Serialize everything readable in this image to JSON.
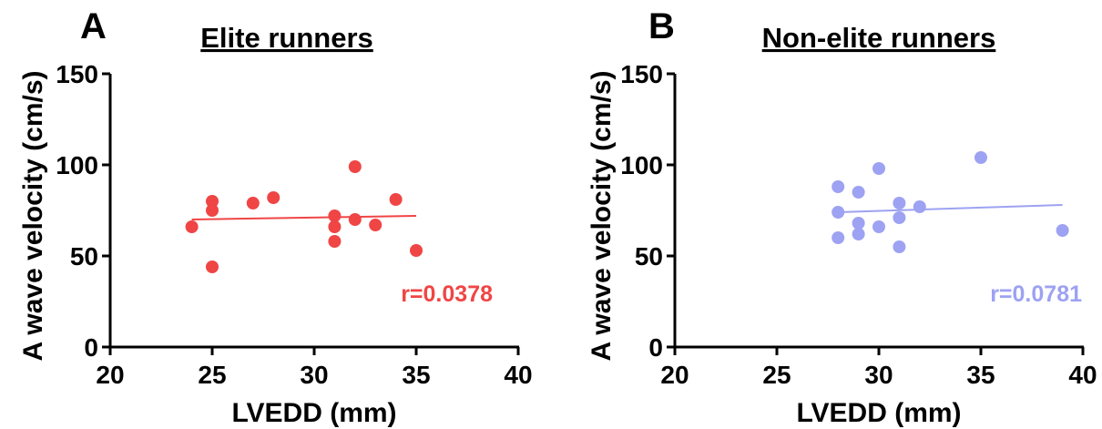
{
  "chart_data": [
    {
      "panel": "A",
      "type": "scatter",
      "title": "Elite runners",
      "xlabel": "LVEDD (mm)",
      "ylabel": "A wave velocity (cm/s)",
      "xlim": [
        20,
        40
      ],
      "ylim": [
        0,
        150
      ],
      "xticks": [
        20,
        25,
        30,
        35,
        40
      ],
      "yticks": [
        0,
        50,
        100,
        150
      ],
      "color": "#f04545",
      "annotation": "r=0.0378",
      "points": [
        {
          "x": 24,
          "y": 66
        },
        {
          "x": 25,
          "y": 80
        },
        {
          "x": 25,
          "y": 75
        },
        {
          "x": 25,
          "y": 44
        },
        {
          "x": 27,
          "y": 79
        },
        {
          "x": 28,
          "y": 82
        },
        {
          "x": 31,
          "y": 72
        },
        {
          "x": 31,
          "y": 66
        },
        {
          "x": 31,
          "y": 58
        },
        {
          "x": 32,
          "y": 99
        },
        {
          "x": 32,
          "y": 70
        },
        {
          "x": 33,
          "y": 67
        },
        {
          "x": 34,
          "y": 81
        },
        {
          "x": 35,
          "y": 53
        }
      ],
      "fit_line": {
        "x": [
          24,
          35
        ],
        "y": [
          70,
          72
        ]
      }
    },
    {
      "panel": "B",
      "type": "scatter",
      "title": "Non-elite runners",
      "xlabel": "LVEDD (mm)",
      "ylabel": "A wave velocity (cm/s)",
      "xlim": [
        20,
        40
      ],
      "ylim": [
        0,
        150
      ],
      "xticks": [
        20,
        25,
        30,
        35,
        40
      ],
      "yticks": [
        0,
        50,
        100,
        150
      ],
      "color": "#9da2f2",
      "annotation": "r=0.0781",
      "points": [
        {
          "x": 28,
          "y": 88
        },
        {
          "x": 28,
          "y": 74
        },
        {
          "x": 28,
          "y": 60
        },
        {
          "x": 29,
          "y": 85
        },
        {
          "x": 29,
          "y": 68
        },
        {
          "x": 29,
          "y": 62
        },
        {
          "x": 30,
          "y": 98
        },
        {
          "x": 30,
          "y": 66
        },
        {
          "x": 31,
          "y": 79
        },
        {
          "x": 31,
          "y": 71
        },
        {
          "x": 31,
          "y": 55
        },
        {
          "x": 32,
          "y": 77
        },
        {
          "x": 35,
          "y": 104
        },
        {
          "x": 39,
          "y": 64
        }
      ],
      "fit_line": {
        "x": [
          28,
          39
        ],
        "y": [
          74,
          78
        ]
      }
    }
  ]
}
